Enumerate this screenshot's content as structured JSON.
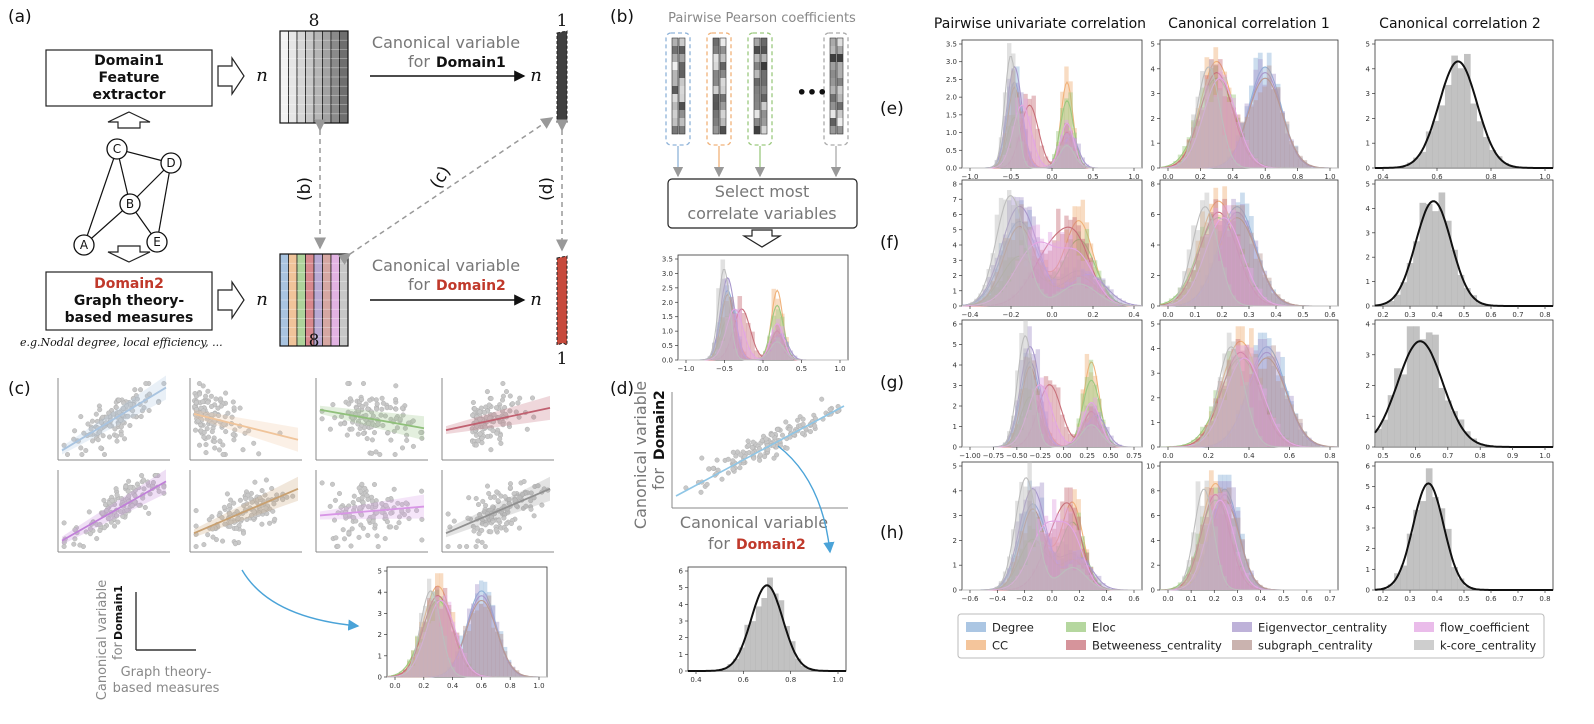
{
  "panel_labels": {
    "a": "(a)",
    "b": "(b)",
    "c": "(c)",
    "d": "(d)",
    "e": "(e)",
    "f": "(f)",
    "g": "(g)",
    "h": "(h)"
  },
  "panel_a": {
    "domain1_box": [
      "Domain1",
      "Feature",
      "extractor"
    ],
    "domain2_title": "Domain2",
    "domain2_box": [
      "Graph theory-",
      "based measures"
    ],
    "example_text": "e.g.Nodal degree, local efficiency, ...",
    "matrix_cols": "8",
    "matrix_rows": "n",
    "vector_cols": "1",
    "cv1_line1": "Canonical variable",
    "cv1_for": "for",
    "cv1_domain": "Domain1",
    "cv2_line1": "Canonical variable",
    "cv2_for": "for",
    "cv2_domain": "Domain2",
    "link_b": "(b)",
    "link_c": "(c)",
    "link_d": "(d)",
    "graph_nodes": [
      "A",
      "B",
      "C",
      "D",
      "E"
    ],
    "domain1_gray_shades": [
      "#f2f2f2",
      "#e6e6e6",
      "#d6d6d6",
      "#c6c6c6",
      "#b5b5b5",
      "#a2a2a2",
      "#8a8a8a",
      "#6e6e6e"
    ],
    "domain2_colors": [
      "#a9c4e0",
      "#f0c49a",
      "#aed39b",
      "#d8888e",
      "#b9a9d4",
      "#d6a7a2",
      "#e2b3e2",
      "#c8c8c8"
    ]
  },
  "panel_b": {
    "title": "Pairwise Pearson coefficients",
    "ellipsis": "•••",
    "select_box": [
      "Select most",
      "correlate variables"
    ],
    "mini_chart_ticks": [
      "−1.0",
      "−0.5",
      "0.0",
      "0.5",
      "1.0"
    ],
    "mini_chart_yticks": [
      "0.0",
      "0.5",
      "1.0",
      "1.5",
      "2.0",
      "2.5",
      "3.0",
      "3.5"
    ]
  },
  "panel_c": {
    "ylabel_line1": "Canonical variable",
    "ylabel_for": "for",
    "ylabel_domain": "Domain1",
    "xlabel": [
      "Graph theory-",
      "based measures"
    ],
    "chart_ticks": [
      "0.0",
      "0.2",
      "0.4",
      "0.6",
      "0.8",
      "1.0"
    ],
    "chart_yticks": [
      "0",
      "1",
      "2",
      "3",
      "4",
      "5"
    ],
    "scatter_slopes": [
      0.85,
      -0.35,
      -0.25,
      0.3,
      0.8,
      0.6,
      0.12,
      0.6
    ],
    "line_colors": [
      "#a9c4e0",
      "#f0c49a",
      "#8fc07a",
      "#c06070",
      "#c080d8",
      "#c8a070",
      "#d896e6",
      "#909090"
    ]
  },
  "panel_d": {
    "ylabel_line1": "Canonical variable",
    "ylabel_for": "for",
    "ylabel_domain": "Domain2",
    "xlabel_line1": "Canonical variable",
    "xlabel_for": "for",
    "xlabel_domain": "Domain2",
    "chart_ticks": [
      "0.4",
      "0.6",
      "0.8",
      "1.0"
    ],
    "chart_yticks": [
      "0",
      "1",
      "2",
      "3",
      "4",
      "5",
      "6"
    ]
  },
  "column_headers": [
    "Pairwise univariate correlation",
    "Canonical correlation 1",
    "Canonical correlation 2"
  ],
  "row_labels": [
    "(e)",
    "(f)",
    "(g)",
    "(h)"
  ],
  "grid_xticks": [
    [
      [
        "−1.0",
        "−0.5",
        "0.0",
        "0.5",
        "1.0"
      ],
      [
        "0.0",
        "0.2",
        "0.4",
        "0.6",
        "0.8",
        "1.0"
      ],
      [
        "0.4",
        "0.6",
        "0.8",
        "1.0"
      ]
    ],
    [
      [
        "−0.4",
        "−0.2",
        "0.0",
        "0.2",
        "0.4"
      ],
      [
        "0.0",
        "0.1",
        "0.2",
        "0.3",
        "0.4",
        "0.5",
        "0.6"
      ],
      [
        "0.2",
        "0.3",
        "0.4",
        "0.5",
        "0.6",
        "0.7",
        "0.8"
      ]
    ],
    [
      [
        "−1.00",
        "−0.75",
        "−0.50",
        "−0.25",
        "0.00",
        "0.25",
        "0.50",
        "0.75"
      ],
      [
        "0.0",
        "0.2",
        "0.4",
        "0.6",
        "0.8"
      ],
      [
        "0.5",
        "0.6",
        "0.7",
        "0.8",
        "0.9",
        "1.0"
      ]
    ],
    [
      [
        "−0.6",
        "−0.4",
        "−0.2",
        "0.0",
        "0.2",
        "0.4",
        "0.6"
      ],
      [
        "0.0",
        "0.1",
        "0.2",
        "0.3",
        "0.4",
        "0.5",
        "0.6",
        "0.7"
      ],
      [
        "0.2",
        "0.3",
        "0.4",
        "0.5",
        "0.6",
        "0.7",
        "0.8"
      ]
    ]
  ],
  "grid_yticks": [
    [
      [
        "0.0",
        "0.5",
        "1.0",
        "1.5",
        "2.0",
        "2.5",
        "3.0",
        "3.5"
      ],
      [
        "0",
        "1",
        "2",
        "3",
        "4",
        "5"
      ],
      [
        "0",
        "1",
        "2",
        "3",
        "4",
        "5"
      ]
    ],
    [
      [
        "0",
        "1",
        "2",
        "3",
        "4",
        "5",
        "6",
        "7",
        "8"
      ],
      [
        "0",
        "2",
        "4",
        "6",
        "8"
      ],
      [
        "0",
        "1",
        "2",
        "3",
        "4",
        "5"
      ]
    ],
    [
      [
        "0",
        "1",
        "2",
        "3",
        "4",
        "5",
        "6"
      ],
      [
        "0",
        "1",
        "2",
        "3",
        "4",
        "5"
      ],
      [
        "0",
        "1",
        "2",
        "3",
        "4"
      ]
    ],
    [
      [
        "0",
        "1",
        "2",
        "3",
        "4",
        "5"
      ],
      [
        "0",
        "2",
        "4",
        "6",
        "8",
        "10"
      ],
      [
        "0",
        "1",
        "2",
        "3",
        "4",
        "5",
        "6"
      ]
    ]
  ],
  "legend": [
    {
      "label": "Degree",
      "color": "#8fb3d9"
    },
    {
      "label": "CC",
      "color": "#f0b27a"
    },
    {
      "label": "Eloc",
      "color": "#9cc97f"
    },
    {
      "label": "Betweeness_centrality",
      "color": "#c8707a"
    },
    {
      "label": "Eigenvector_centrality",
      "color": "#a898cc"
    },
    {
      "label": "subgraph_centrality",
      "color": "#b89a94"
    },
    {
      "label": "flow_coefficient",
      "color": "#e3a6e3"
    },
    {
      "label": "k-core_centrality",
      "color": "#bdbdbd"
    }
  ],
  "chart_data": [
    {
      "type": "area",
      "title": "Pairwise univariate correlation (e)",
      "note": "overlapping histograms with density curves; bimodal around -0.5 and 0.2",
      "x": [
        -1.0,
        -0.5,
        0.0,
        0.5,
        1.0
      ],
      "ylim": [
        0,
        3.5
      ]
    },
    {
      "type": "area",
      "title": "Canonical correlation 1 (e)",
      "note": "bimodal around 0.3 and 0.6",
      "x": [
        0.0,
        0.2,
        0.4,
        0.6,
        0.8,
        1.0
      ],
      "ylim": [
        0,
        5
      ]
    },
    {
      "type": "area",
      "title": "Canonical correlation 2 (e)",
      "note": "unimodal peak near 0.65",
      "x": [
        0.4,
        0.6,
        0.8,
        1.0
      ],
      "ylim": [
        0,
        5.5
      ]
    }
  ]
}
